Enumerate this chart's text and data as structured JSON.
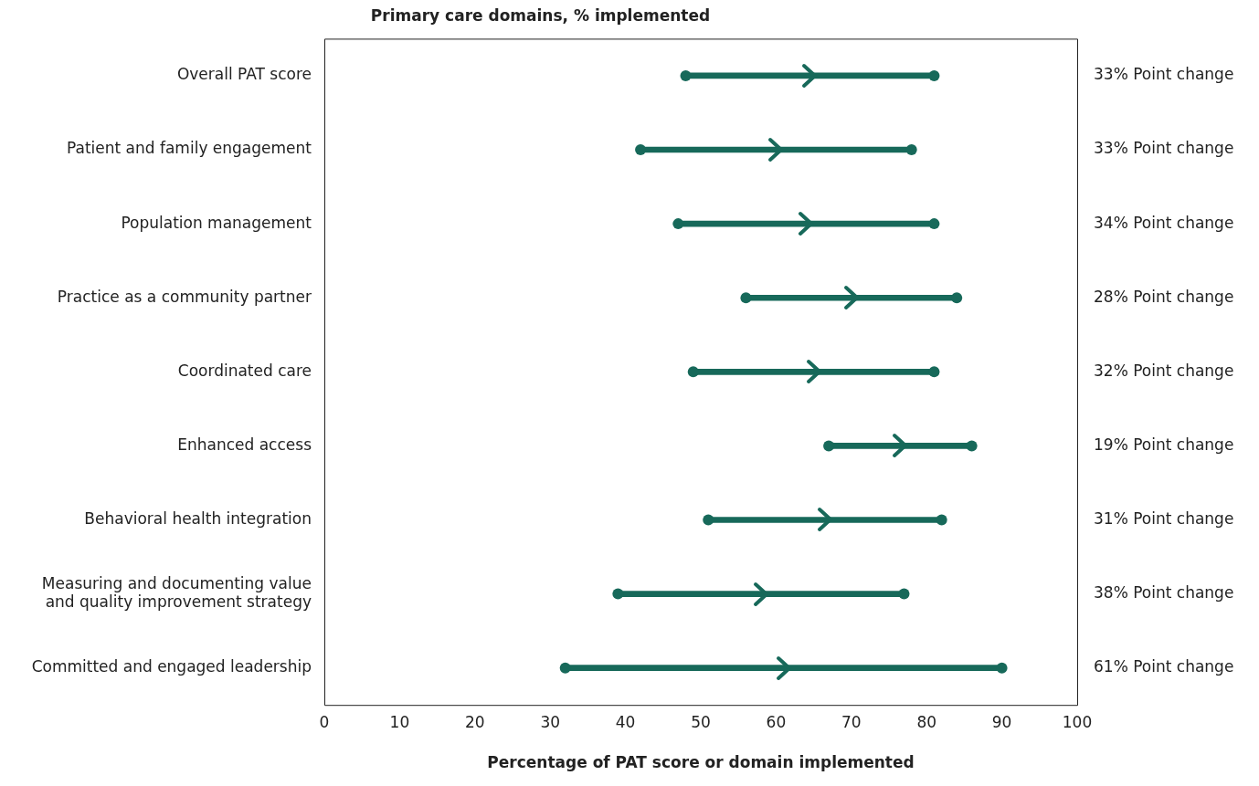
{
  "chart_data": {
    "type": "bar",
    "orientation": "horizontal",
    "title": "Primary care domains, % implemented",
    "xlabel": "Percentage of PAT score or domain implemented",
    "categories": [
      "Overall PAT score",
      "Patient and family engagement",
      "Population management",
      "Practice as a community partner",
      "Coordinated care",
      "Enhanced access",
      "Behavioral health integration",
      "Measuring and documenting value and quality improvement strategy",
      "Committed and engaged leadership"
    ],
    "series": [
      {
        "color": "#17695a",
        "base": [
          48,
          42,
          47,
          56,
          49,
          67,
          51,
          39,
          32
        ],
        "values": [
          33,
          36,
          34,
          28,
          32,
          19,
          31,
          38,
          58
        ]
      },
      {
        "type": "scatter",
        "color": "#17695a",
        "values": [
          48,
          42,
          47,
          56,
          49,
          67,
          51,
          39,
          32
        ]
      },
      {
        "type": "scatter",
        "color": "#17695a",
        "values": [
          81,
          78,
          81,
          84,
          81,
          86,
          82,
          77,
          90
        ]
      }
    ],
    "marker": "circle",
    "xlim": [
      0,
      100
    ],
    "xticks": [
      0,
      10,
      20,
      30,
      40,
      50,
      60,
      70,
      80,
      90,
      100
    ],
    "grid": false,
    "legend": false,
    "annotations": [
      "33% Point change",
      "33% Point change",
      "34% Point change",
      "28% Point change",
      "32% Point change",
      "19% Point change",
      "31% Point change",
      "38% Point change",
      "61% Point change"
    ]
  }
}
